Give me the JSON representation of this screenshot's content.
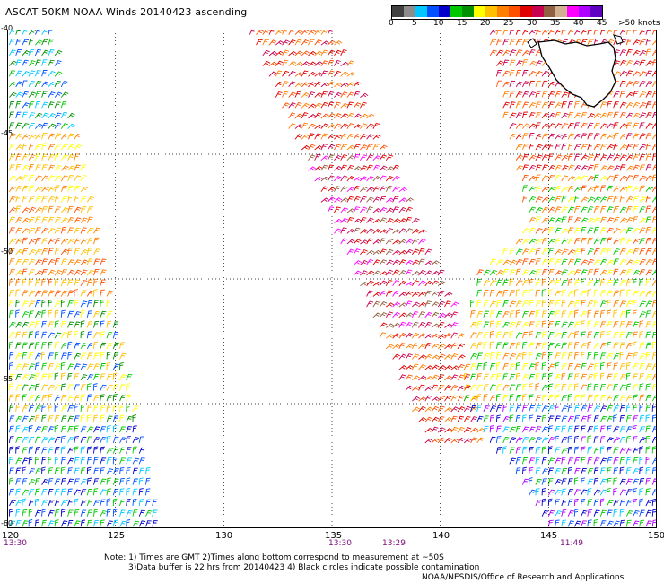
{
  "title": "ASCAT 50KM NOAA Winds 20140423 ascending",
  "legend": {
    "colors": [
      "#404040",
      "#8c8c8c",
      "#00c8ff",
      "#0050ff",
      "#0000c8",
      "#00c800",
      "#009000",
      "#ffff00",
      "#ffc000",
      "#ff8000",
      "#ff5000",
      "#e00000",
      "#c80050",
      "#906040",
      "#d0b090",
      "#ff00ff",
      "#b000ff",
      "#6000c0"
    ],
    "labels": [
      "0",
      "5",
      "10",
      "15",
      "20",
      "25",
      "30",
      "35",
      "40",
      "45",
      ">50 knots"
    ]
  },
  "axes": {
    "lon_ticks": [
      "120",
      "125",
      "130",
      "135",
      "140",
      "145",
      "150"
    ],
    "lat_ticks": [
      "-40",
      "-45",
      "-50",
      "-55",
      "-60"
    ]
  },
  "times": [
    "13:30",
    "13:30",
    "13:29",
    "11:49"
  ],
  "notes": [
    "Note: 1) Times are GMT 2)Times along bottom correspond to measurement at ~50S",
    "3)Data buffer is 22 hrs from 20140423 4) Black circles indicate possible contamination",
    "NOAA/NESDIS/Office of Research and Applications"
  ],
  "swaths": [
    {
      "name": "west",
      "poly": [
        [
          120,
          -40
        ],
        [
          122,
          -40
        ],
        [
          125,
          -52
        ],
        [
          127,
          -60
        ],
        [
          120,
          -60
        ]
      ],
      "bands": [
        {
          "lat": [
            -60,
            -56
          ],
          "colors": [
            "#0000c8",
            "#0050ff",
            "#00c8ff",
            "#00c800"
          ]
        },
        {
          "lat": [
            -56,
            -51
          ],
          "colors": [
            "#ffff00",
            "#00c800",
            "#0050ff",
            "#009000",
            "#ffc000"
          ]
        },
        {
          "lat": [
            -51,
            -47
          ],
          "colors": [
            "#ffc000",
            "#ff8000",
            "#ff5000"
          ]
        },
        {
          "lat": [
            -47,
            -44
          ],
          "colors": [
            "#ffff00",
            "#ffc000",
            "#ff8000"
          ]
        },
        {
          "lat": [
            -44,
            -40
          ],
          "colors": [
            "#009000",
            "#00c8ff",
            "#0050ff",
            "#00c800"
          ]
        }
      ]
    },
    {
      "name": "middle",
      "poly": [
        [
          131,
          -40
        ],
        [
          135,
          -40
        ],
        [
          140.5,
          -51
        ],
        [
          142,
          -57
        ],
        [
          139.5,
          -57
        ],
        [
          136,
          -50
        ]
      ],
      "bands": [
        {
          "lat": [
            -57,
            -52
          ],
          "colors": [
            "#e00000",
            "#ff5000",
            "#ff8000",
            "#c80050"
          ]
        },
        {
          "lat": [
            -52,
            -45
          ],
          "colors": [
            "#c80050",
            "#906040",
            "#e00000",
            "#ff00ff"
          ]
        },
        {
          "lat": [
            -45,
            -40
          ],
          "colors": [
            "#e00000",
            "#ff5000",
            "#c80050",
            "#ff8000"
          ]
        }
      ]
    },
    {
      "name": "east",
      "poly": [
        [
          142,
          -40
        ],
        [
          150,
          -40
        ],
        [
          150,
          -60
        ],
        [
          145,
          -60
        ],
        [
          141,
          -55
        ],
        [
          141.5,
          -50
        ],
        [
          144,
          -48
        ]
      ],
      "bands": [
        {
          "lat": [
            -60,
            -55
          ],
          "colors": [
            "#0050ff",
            "#0000c8",
            "#00c8ff",
            "#00c800",
            "#b000ff"
          ]
        },
        {
          "lat": [
            -55,
            -50
          ],
          "colors": [
            "#ffff00",
            "#ffc000",
            "#00c800",
            "#ff8000"
          ]
        },
        {
          "lat": [
            -50,
            -46
          ],
          "colors": [
            "#ff8000",
            "#ff5000",
            "#00c800",
            "#ffff00"
          ]
        },
        {
          "lat": [
            -46,
            -40
          ],
          "colors": [
            "#e00000",
            "#ff5000",
            "#c80050",
            "#ff8000"
          ]
        }
      ]
    }
  ]
}
